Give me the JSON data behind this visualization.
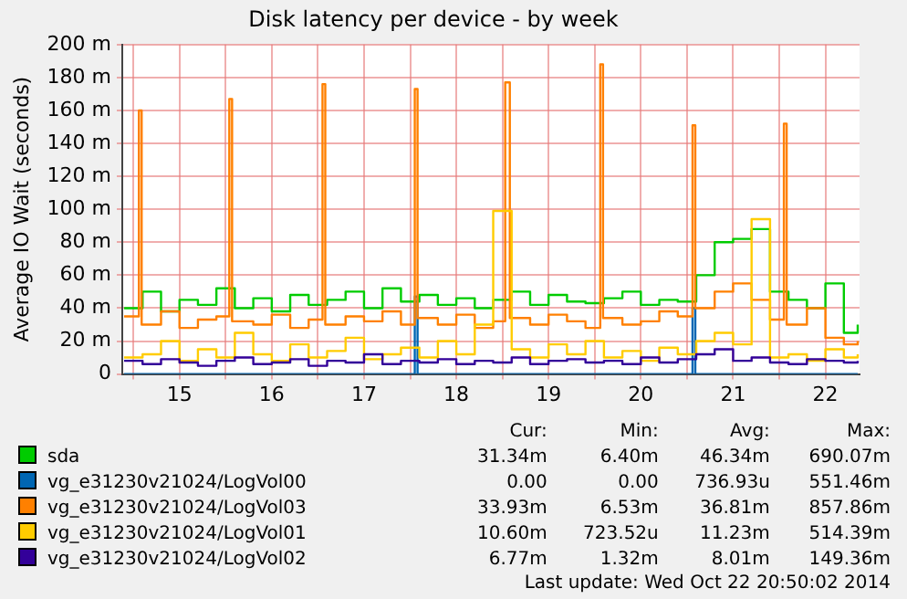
{
  "chart_data": {
    "type": "step",
    "title": "Disk latency per device - by week",
    "ylabel": "Average IO Wait (seconds)",
    "x": [
      14.9,
      15.1,
      15.3,
      15.5,
      15.7,
      15.9,
      16.1,
      16.3,
      16.5,
      16.7,
      16.9,
      17.1,
      17.3,
      17.5,
      17.7,
      17.9,
      18.1,
      18.3,
      18.5,
      18.7,
      18.9,
      19.1,
      19.3,
      19.5,
      19.7,
      19.9,
      20.1,
      20.3,
      20.5,
      20.7,
      20.9,
      21.1,
      21.3,
      21.5,
      21.7,
      21.9,
      22.1,
      22.3,
      22.5,
      22.7,
      22.85
    ],
    "xlim": [
      14.88,
      22.87
    ],
    "xticks": [
      {
        "value": 15,
        "label": null
      },
      {
        "value": 15.5,
        "label": "15"
      },
      {
        "value": 16,
        "label": null
      },
      {
        "value": 16.5,
        "label": "16"
      },
      {
        "value": 17,
        "label": null
      },
      {
        "value": 17.5,
        "label": "17"
      },
      {
        "value": 18,
        "label": null
      },
      {
        "value": 18.5,
        "label": "18"
      },
      {
        "value": 19,
        "label": null
      },
      {
        "value": 19.5,
        "label": "19"
      },
      {
        "value": 20,
        "label": null
      },
      {
        "value": 20.5,
        "label": "20"
      },
      {
        "value": 21,
        "label": null
      },
      {
        "value": 21.5,
        "label": "21"
      },
      {
        "value": 22,
        "label": null
      },
      {
        "value": 22.5,
        "label": "22"
      }
    ],
    "ylim": [
      0,
      200
    ],
    "yticks": [
      0,
      {
        "value": 20,
        "label": "20 m"
      },
      {
        "value": 40,
        "label": "40 m"
      },
      {
        "value": 60,
        "label": "60 m"
      },
      {
        "value": 80,
        "label": "80 m"
      },
      {
        "value": 100,
        "label": "100 m"
      },
      {
        "value": 120,
        "label": "120 m"
      },
      {
        "value": 140,
        "label": "140 m"
      },
      {
        "value": 160,
        "label": "160 m"
      },
      {
        "value": 180,
        "label": "180 m"
      },
      {
        "value": 200,
        "label": "200 m"
      }
    ],
    "grid": true,
    "legend": "bottom",
    "series": [
      {
        "name": "sda",
        "color": "#00cc00",
        "values": [
          40,
          50,
          38,
          45,
          42,
          52,
          40,
          46,
          38,
          48,
          42,
          45,
          50,
          40,
          52,
          44,
          48,
          42,
          46,
          40,
          45,
          50,
          42,
          48,
          44,
          43,
          46,
          50,
          42,
          45,
          44,
          60,
          80,
          82,
          88,
          50,
          45,
          40,
          55,
          25,
          30
        ]
      },
      {
        "name": "vg_e31230v21024/LogVol00",
        "color": "#0066b3",
        "x": [
          14.9,
          18.05,
          18.08,
          21.06,
          21.09,
          22.85
        ],
        "values": [
          0,
          47,
          0,
          40,
          0,
          0
        ]
      },
      {
        "name": "vg_e31230v21024/LogVol03",
        "color": "#ff8000",
        "x": [
          14.9,
          15.06,
          15.09,
          15.3,
          15.5,
          15.7,
          15.9,
          16.04,
          16.07,
          16.3,
          16.5,
          16.7,
          16.9,
          17.05,
          17.08,
          17.3,
          17.5,
          17.7,
          17.9,
          18.05,
          18.08,
          18.3,
          18.5,
          18.7,
          18.9,
          19.03,
          19.08,
          19.3,
          19.5,
          19.7,
          19.9,
          20.06,
          20.09,
          20.3,
          20.5,
          20.7,
          20.9,
          21.06,
          21.09,
          21.3,
          21.5,
          21.7,
          21.9,
          22.05,
          22.08,
          22.3,
          22.5,
          22.7,
          22.85
        ],
        "values": [
          35,
          160,
          30,
          38,
          28,
          33,
          35,
          167,
          32,
          30,
          36,
          28,
          33,
          176,
          30,
          35,
          32,
          38,
          30,
          173,
          34,
          30,
          36,
          28,
          32,
          177,
          34,
          30,
          36,
          32,
          28,
          188,
          34,
          30,
          32,
          38,
          35,
          151,
          40,
          50,
          55,
          45,
          33,
          152,
          30,
          40,
          22,
          18,
          20
        ]
      },
      {
        "name": "vg_e31230v21024/LogVol01",
        "color": "#ffcc00",
        "values": [
          10,
          12,
          20,
          8,
          15,
          10,
          25,
          12,
          8,
          18,
          10,
          14,
          22,
          9,
          12,
          16,
          10,
          20,
          12,
          30,
          99,
          15,
          10,
          18,
          12,
          20,
          10,
          14,
          8,
          16,
          12,
          20,
          25,
          18,
          94,
          10,
          12,
          8,
          15,
          10,
          12
        ]
      },
      {
        "name": "vg_e31230v21024/LogVol02",
        "color": "#330099",
        "values": [
          8,
          6,
          9,
          7,
          5,
          8,
          10,
          6,
          7,
          9,
          5,
          8,
          7,
          12,
          6,
          8,
          7,
          9,
          6,
          8,
          7,
          10,
          6,
          8,
          9,
          7,
          8,
          6,
          10,
          7,
          9,
          12,
          15,
          8,
          10,
          7,
          6,
          9,
          8,
          7,
          8
        ]
      }
    ],
    "annotations": [
      "Cur:",
      "Min:",
      "Avg:",
      "Max:",
      "31.34m",
      "6.40m",
      "46.34m",
      "690.07m",
      "0.00",
      "0.00",
      "736.93u",
      "551.46m",
      "33.93m",
      "6.53m",
      "36.81m",
      "857.86m",
      "10.60m",
      "723.52u",
      "11.23m",
      "514.39m",
      "6.77m",
      "1.32m",
      "8.01m",
      "149.36m",
      "Last update: Wed Oct 22 20:50:02 2014"
    ]
  }
}
